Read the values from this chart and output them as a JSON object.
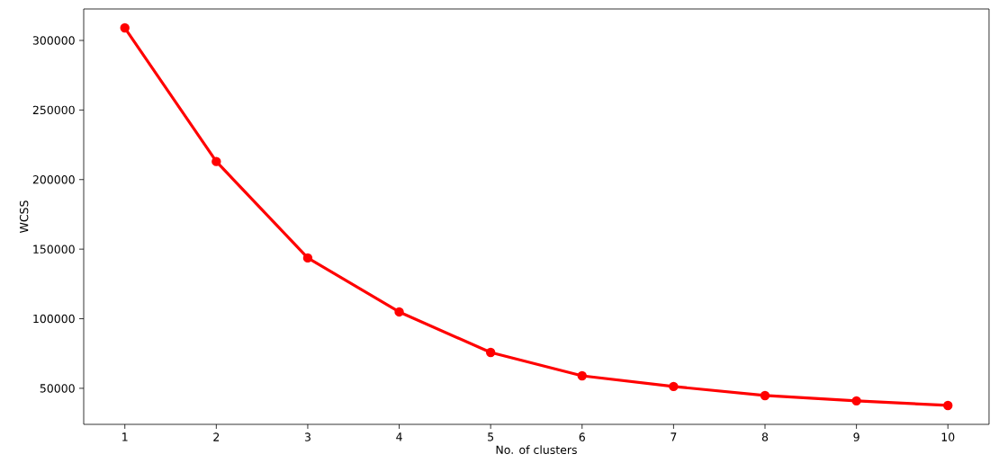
{
  "chart_data": {
    "type": "line",
    "xlabel": "No. of clusters",
    "ylabel": "WCSS",
    "x": [
      1,
      2,
      3,
      4,
      5,
      6,
      7,
      8,
      9,
      10
    ],
    "series": [
      {
        "color": "#ff0000",
        "values": [
          309000,
          213000,
          143700,
          104900,
          75800,
          59000,
          51300,
          44800,
          41000,
          37700
        ]
      }
    ],
    "xlim": [
      0.55,
      10.45
    ],
    "ylim": [
      24100,
      322600
    ],
    "xticks": [
      1,
      2,
      3,
      4,
      5,
      6,
      7,
      8,
      9,
      10
    ],
    "yticks": [
      50000,
      100000,
      150000,
      200000,
      250000,
      300000
    ],
    "marker": "circle",
    "line_style": "solid"
  }
}
